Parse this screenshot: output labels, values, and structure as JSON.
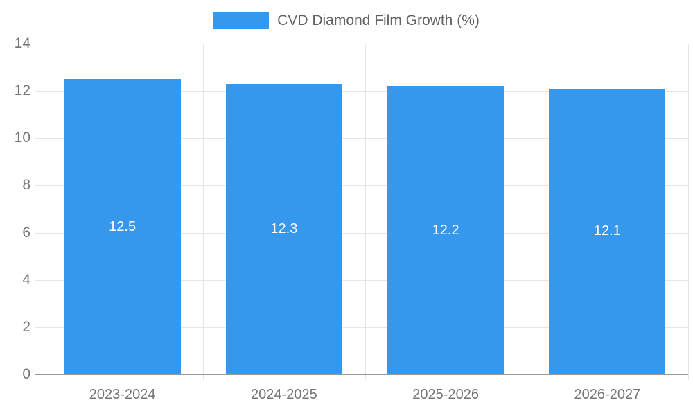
{
  "legend": {
    "label": "CVD Diamond Film Growth (%)"
  },
  "chart_data": {
    "type": "bar",
    "title": "CVD Diamond Film Growth (%)",
    "categories": [
      "2023-2024",
      "2024-2025",
      "2025-2026",
      "2026-2027"
    ],
    "series": [
      {
        "name": "CVD Diamond Film Growth (%)",
        "values": [
          12.5,
          12.3,
          12.2,
          12.1
        ]
      }
    ],
    "data_labels": [
      "12.5",
      "12.3",
      "12.2",
      "12.1"
    ],
    "xlabel": "",
    "ylabel": "",
    "ylim": [
      0,
      14
    ],
    "yticks": [
      0,
      2,
      4,
      6,
      8,
      10,
      12,
      14
    ],
    "grid": true,
    "legend_position": "top-center",
    "colors": {
      "bar": "#3598EC",
      "bar_value_label": "#ffffff",
      "axis_text": "#757575",
      "legend_text": "#616161",
      "grid_line": "#e6e6e6",
      "axis_line": "#999999"
    }
  }
}
